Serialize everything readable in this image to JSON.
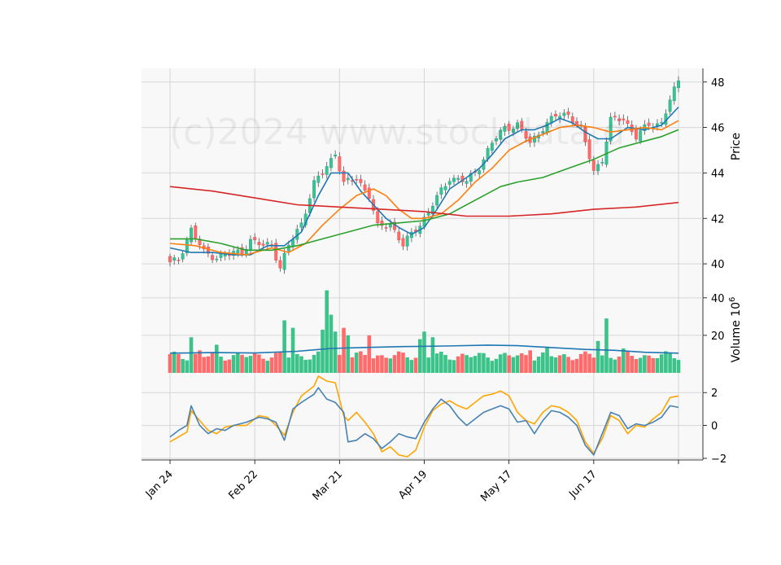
{
  "watermark": "(c)2024 www.stockdata.d",
  "colors": {
    "up": "#26a69a",
    "up_fill": "#3cc38a",
    "down": "#ef5350",
    "down_fill": "#ff6b6b",
    "ma_short": "#1f77b4",
    "ma_mid": "#ff7f0e",
    "ma_long": "#2ca02c",
    "ma_200": "#d62728",
    "osc_fast": "#4682b4",
    "osc_slow": "#ffa500",
    "panel_bg": "#f8f8f8",
    "grid": "#d6d6d6"
  },
  "chart_data": {
    "type": "candlestick",
    "x_ticks": [
      {
        "label": "Jan 24",
        "index": 0
      },
      {
        "label": "Feb 22",
        "index": 20
      },
      {
        "label": "Mar 21",
        "index": 40
      },
      {
        "label": "Apr 19",
        "index": 60
      },
      {
        "label": "May 17",
        "index": 80
      },
      {
        "label": "Jun 17",
        "index": 100
      },
      {
        "label": "",
        "index": 120
      }
    ],
    "price_panel": {
      "ylabel": "Price",
      "ylim": [
        39.0,
        48.6
      ],
      "yticks": [
        40,
        42,
        44,
        46,
        48
      ],
      "close_keypoints": [
        [
          0,
          40.0
        ],
        [
          2,
          40.2
        ],
        [
          5,
          41.5
        ],
        [
          8,
          40.5
        ],
        [
          11,
          40.3
        ],
        [
          14,
          40.4
        ],
        [
          17,
          40.6
        ],
        [
          19,
          41.0
        ],
        [
          22,
          40.8
        ],
        [
          24,
          40.9
        ],
        [
          26,
          39.8
        ],
        [
          28,
          40.8
        ],
        [
          31,
          41.8
        ],
        [
          34,
          43.5
        ],
        [
          37,
          44.3
        ],
        [
          39,
          44.9
        ],
        [
          41,
          43.5
        ],
        [
          44,
          43.8
        ],
        [
          47,
          43.0
        ],
        [
          49,
          41.6
        ],
        [
          52,
          41.8
        ],
        [
          55,
          40.8
        ],
        [
          57,
          41.3
        ],
        [
          60,
          42.0
        ],
        [
          63,
          42.9
        ],
        [
          66,
          43.8
        ],
        [
          70,
          43.6
        ],
        [
          73,
          44.3
        ],
        [
          76,
          45.3
        ],
        [
          79,
          46.0
        ],
        [
          82,
          46.1
        ],
        [
          85,
          45.3
        ],
        [
          88,
          46.0
        ],
        [
          91,
          46.5
        ],
        [
          94,
          46.6
        ],
        [
          97,
          45.9
        ],
        [
          100,
          44.1
        ],
        [
          102,
          44.6
        ],
        [
          104,
          46.3
        ],
        [
          107,
          46.4
        ],
        [
          110,
          45.6
        ],
        [
          113,
          46.1
        ],
        [
          116,
          46.2
        ],
        [
          118,
          47.2
        ],
        [
          120,
          48.0
        ]
      ],
      "moving_averages": [
        {
          "key": "ma_short",
          "points": [
            [
              0,
              40.7
            ],
            [
              5,
              40.5
            ],
            [
              10,
              40.5
            ],
            [
              15,
              40.4
            ],
            [
              19,
              40.4
            ],
            [
              23,
              40.8
            ],
            [
              27,
              40.8
            ],
            [
              31,
              41.4
            ],
            [
              35,
              43.0
            ],
            [
              38,
              44.0
            ],
            [
              42,
              44.0
            ],
            [
              45,
              43.2
            ],
            [
              48,
              42.6
            ],
            [
              51,
              42.0
            ],
            [
              54,
              41.6
            ],
            [
              57,
              41.3
            ],
            [
              60,
              41.6
            ],
            [
              63,
              42.4
            ],
            [
              66,
              43.3
            ],
            [
              70,
              43.8
            ],
            [
              73,
              44.2
            ],
            [
              76,
              44.8
            ],
            [
              79,
              45.5
            ],
            [
              83,
              45.9
            ],
            [
              86,
              45.9
            ],
            [
              89,
              46.1
            ],
            [
              92,
              46.4
            ],
            [
              95,
              46.2
            ],
            [
              98,
              45.8
            ],
            [
              101,
              45.5
            ],
            [
              104,
              45.5
            ],
            [
              108,
              46.0
            ],
            [
              112,
              45.9
            ],
            [
              116,
              46.1
            ],
            [
              120,
              46.9
            ]
          ]
        },
        {
          "key": "ma_mid",
          "points": [
            [
              0,
              40.9
            ],
            [
              6,
              40.8
            ],
            [
              12,
              40.5
            ],
            [
              18,
              40.4
            ],
            [
              24,
              40.7
            ],
            [
              28,
              40.5
            ],
            [
              32,
              40.9
            ],
            [
              36,
              41.7
            ],
            [
              40,
              42.4
            ],
            [
              44,
              43.0
            ],
            [
              48,
              43.3
            ],
            [
              51,
              43.0
            ],
            [
              54,
              42.4
            ],
            [
              57,
              42.0
            ],
            [
              60,
              42.0
            ],
            [
              64,
              42.2
            ],
            [
              68,
              42.8
            ],
            [
              72,
              43.6
            ],
            [
              76,
              44.2
            ],
            [
              80,
              45.0
            ],
            [
              84,
              45.4
            ],
            [
              88,
              45.7
            ],
            [
              92,
              46.0
            ],
            [
              96,
              46.1
            ],
            [
              100,
              46.0
            ],
            [
              104,
              45.8
            ],
            [
              108,
              45.9
            ],
            [
              112,
              46.0
            ],
            [
              116,
              45.9
            ],
            [
              120,
              46.3
            ]
          ]
        },
        {
          "key": "ma_long",
          "points": [
            [
              0,
              41.1
            ],
            [
              6,
              41.1
            ],
            [
              12,
              40.9
            ],
            [
              18,
              40.6
            ],
            [
              24,
              40.6
            ],
            [
              30,
              40.8
            ],
            [
              36,
              41.1
            ],
            [
              42,
              41.4
            ],
            [
              48,
              41.7
            ],
            [
              54,
              41.8
            ],
            [
              60,
              41.9
            ],
            [
              66,
              42.2
            ],
            [
              72,
              42.8
            ],
            [
              78,
              43.4
            ],
            [
              82,
              43.6
            ],
            [
              88,
              43.8
            ],
            [
              94,
              44.2
            ],
            [
              100,
              44.6
            ],
            [
              106,
              45.1
            ],
            [
              112,
              45.4
            ],
            [
              116,
              45.6
            ],
            [
              120,
              45.9
            ]
          ]
        },
        {
          "key": "ma_200",
          "points": [
            [
              0,
              43.4
            ],
            [
              10,
              43.2
            ],
            [
              20,
              42.9
            ],
            [
              30,
              42.6
            ],
            [
              40,
              42.5
            ],
            [
              50,
              42.4
            ],
            [
              60,
              42.3
            ],
            [
              70,
              42.1
            ],
            [
              80,
              42.1
            ],
            [
              90,
              42.2
            ],
            [
              100,
              42.4
            ],
            [
              110,
              42.5
            ],
            [
              120,
              42.7
            ]
          ]
        }
      ]
    },
    "volume_panel": {
      "ylabel": "Volume 10",
      "ylabel_exp": "6",
      "ylim": [
        0,
        46
      ],
      "yticks": [
        20,
        40
      ],
      "baseline_volume": 9,
      "spikes": [
        [
          5,
          19
        ],
        [
          7,
          12
        ],
        [
          11,
          15
        ],
        [
          27,
          28
        ],
        [
          29,
          24
        ],
        [
          36,
          23
        ],
        [
          37,
          44
        ],
        [
          38,
          31
        ],
        [
          39,
          22
        ],
        [
          41,
          24
        ],
        [
          42,
          20
        ],
        [
          47,
          20
        ],
        [
          59,
          18
        ],
        [
          60,
          22
        ],
        [
          62,
          19
        ],
        [
          85,
          12
        ],
        [
          89,
          14
        ],
        [
          101,
          17
        ],
        [
          103,
          29
        ],
        [
          107,
          13
        ]
      ],
      "ma_points": [
        [
          0,
          10.5
        ],
        [
          10,
          10.8
        ],
        [
          20,
          10.6
        ],
        [
          30,
          11.5
        ],
        [
          38,
          13.0
        ],
        [
          45,
          13.5
        ],
        [
          55,
          14.0
        ],
        [
          65,
          14.3
        ],
        [
          75,
          14.8
        ],
        [
          82,
          14.5
        ],
        [
          90,
          13.5
        ],
        [
          98,
          12.5
        ],
        [
          105,
          12.0
        ],
        [
          112,
          11.0
        ],
        [
          120,
          10.5
        ]
      ]
    },
    "oscillator_panel": {
      "ylim": [
        -2.1,
        3.2
      ],
      "yticks": [
        -2,
        0,
        2
      ],
      "fast_points": [
        [
          0,
          -0.7
        ],
        [
          2,
          -0.3
        ],
        [
          4,
          0.0
        ],
        [
          5,
          1.2
        ],
        [
          7,
          0.0
        ],
        [
          9,
          -0.5
        ],
        [
          11,
          -0.2
        ],
        [
          13,
          -0.3
        ],
        [
          15,
          0.0
        ],
        [
          18,
          0.2
        ],
        [
          21,
          0.5
        ],
        [
          23,
          0.4
        ],
        [
          25,
          0.2
        ],
        [
          27,
          -0.9
        ],
        [
          29,
          1.0
        ],
        [
          31,
          1.4
        ],
        [
          34,
          1.9
        ],
        [
          35,
          2.3
        ],
        [
          37,
          1.6
        ],
        [
          39,
          1.4
        ],
        [
          41,
          0.8
        ],
        [
          42,
          -1.0
        ],
        [
          44,
          -0.9
        ],
        [
          46,
          -0.5
        ],
        [
          48,
          -0.8
        ],
        [
          50,
          -1.4
        ],
        [
          52,
          -1.0
        ],
        [
          54,
          -0.5
        ],
        [
          56,
          -0.7
        ],
        [
          58,
          -0.8
        ],
        [
          60,
          0.2
        ],
        [
          62,
          1.0
        ],
        [
          64,
          1.6
        ],
        [
          66,
          1.2
        ],
        [
          68,
          0.5
        ],
        [
          70,
          0.0
        ],
        [
          72,
          0.4
        ],
        [
          74,
          0.8
        ],
        [
          76,
          1.0
        ],
        [
          78,
          1.2
        ],
        [
          80,
          1.0
        ],
        [
          82,
          0.2
        ],
        [
          84,
          0.3
        ],
        [
          86,
          -0.5
        ],
        [
          88,
          0.3
        ],
        [
          90,
          0.9
        ],
        [
          92,
          0.8
        ],
        [
          94,
          0.5
        ],
        [
          96,
          0.0
        ],
        [
          98,
          -1.2
        ],
        [
          100,
          -1.8
        ],
        [
          102,
          -0.5
        ],
        [
          104,
          0.8
        ],
        [
          106,
          0.6
        ],
        [
          108,
          -0.2
        ],
        [
          110,
          0.1
        ],
        [
          112,
          0.0
        ],
        [
          114,
          0.2
        ],
        [
          116,
          0.5
        ],
        [
          118,
          1.2
        ],
        [
          120,
          1.1
        ]
      ],
      "slow_points": [
        [
          0,
          -1.0
        ],
        [
          2,
          -0.7
        ],
        [
          4,
          -0.4
        ],
        [
          5,
          0.9
        ],
        [
          7,
          0.3
        ],
        [
          9,
          -0.3
        ],
        [
          11,
          -0.5
        ],
        [
          13,
          -0.1
        ],
        [
          15,
          0.0
        ],
        [
          18,
          0.0
        ],
        [
          21,
          0.6
        ],
        [
          23,
          0.5
        ],
        [
          25,
          0.0
        ],
        [
          27,
          -0.6
        ],
        [
          29,
          0.8
        ],
        [
          31,
          1.8
        ],
        [
          34,
          2.4
        ],
        [
          35,
          3.0
        ],
        [
          37,
          2.7
        ],
        [
          39,
          2.6
        ],
        [
          41,
          0.6
        ],
        [
          42,
          0.3
        ],
        [
          44,
          0.8
        ],
        [
          46,
          0.2
        ],
        [
          48,
          -0.5
        ],
        [
          50,
          -1.6
        ],
        [
          52,
          -1.3
        ],
        [
          54,
          -1.8
        ],
        [
          56,
          -1.9
        ],
        [
          58,
          -1.5
        ],
        [
          60,
          -0.1
        ],
        [
          62,
          0.9
        ],
        [
          64,
          1.3
        ],
        [
          66,
          1.5
        ],
        [
          68,
          1.2
        ],
        [
          70,
          1.0
        ],
        [
          72,
          1.4
        ],
        [
          74,
          1.8
        ],
        [
          76,
          1.9
        ],
        [
          78,
          2.1
        ],
        [
          80,
          1.8
        ],
        [
          82,
          0.8
        ],
        [
          84,
          0.3
        ],
        [
          86,
          0.1
        ],
        [
          88,
          0.8
        ],
        [
          90,
          1.2
        ],
        [
          92,
          1.1
        ],
        [
          94,
          0.8
        ],
        [
          96,
          0.3
        ],
        [
          98,
          -1.0
        ],
        [
          100,
          -1.7
        ],
        [
          102,
          -0.8
        ],
        [
          104,
          0.6
        ],
        [
          106,
          0.3
        ],
        [
          108,
          -0.5
        ],
        [
          110,
          0.0
        ],
        [
          112,
          -0.1
        ],
        [
          114,
          0.4
        ],
        [
          116,
          0.8
        ],
        [
          118,
          1.7
        ],
        [
          120,
          1.8
        ]
      ]
    }
  }
}
